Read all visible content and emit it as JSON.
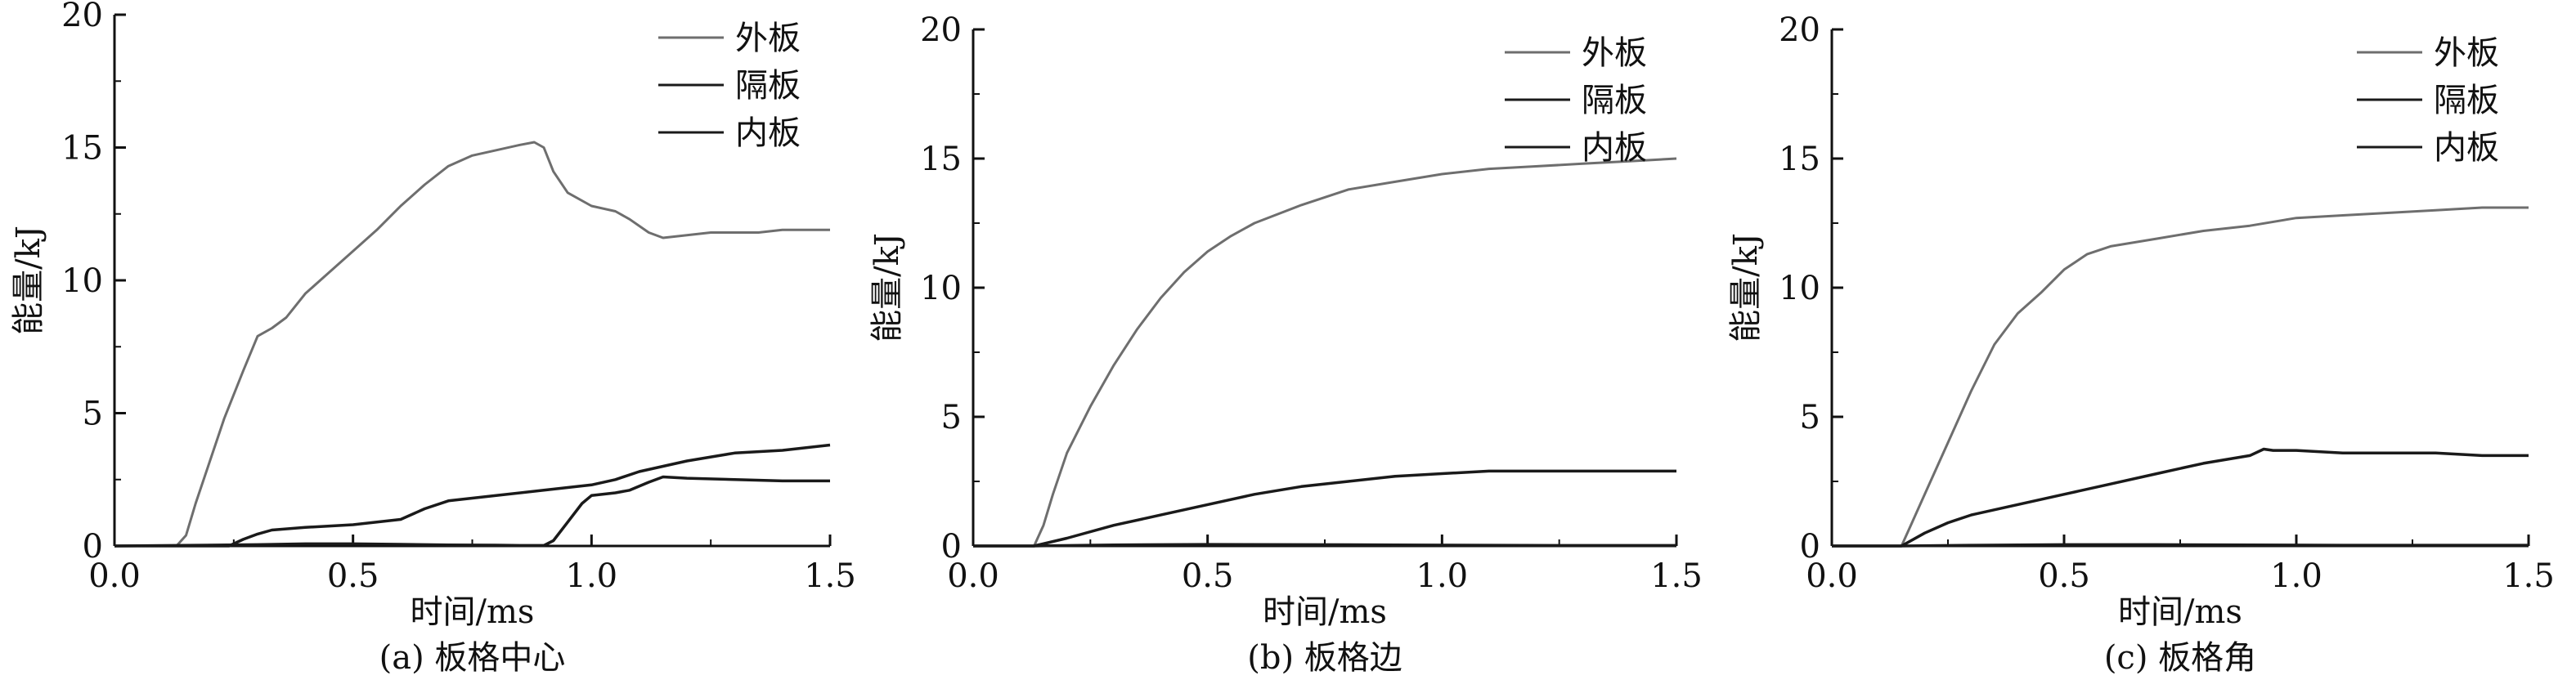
{
  "figure": {
    "legend_labels": [
      "外板",
      "隔板",
      "内板"
    ]
  },
  "chart_data": [
    {
      "type": "line",
      "caption": "(a) 板格中心",
      "xlabel": "时间/ms",
      "ylabel": "能量/kJ",
      "xlim": [
        0.0,
        1.5
      ],
      "ylim": [
        0,
        20
      ],
      "xticks": [
        "0.0",
        "0.5",
        "1.0",
        "1.5"
      ],
      "yticks": [
        "0",
        "5",
        "10",
        "15",
        "20"
      ],
      "legend_position": "top-right",
      "grid": false,
      "series": [
        {
          "name": "外板",
          "color": "#6e6e6e",
          "x": [
            0,
            0.13,
            0.15,
            0.17,
            0.2,
            0.23,
            0.27,
            0.3,
            0.33,
            0.36,
            0.4,
            0.45,
            0.5,
            0.55,
            0.6,
            0.65,
            0.7,
            0.75,
            0.8,
            0.85,
            0.88,
            0.9,
            0.92,
            0.95,
            1.0,
            1.05,
            1.08,
            1.12,
            1.15,
            1.2,
            1.25,
            1.3,
            1.35,
            1.4,
            1.45,
            1.5
          ],
          "y": [
            0,
            0,
            0.4,
            1.6,
            3.2,
            4.8,
            6.6,
            7.9,
            8.2,
            8.6,
            9.5,
            10.3,
            11.1,
            11.9,
            12.8,
            13.6,
            14.3,
            14.7,
            14.9,
            15.1,
            15.2,
            15.0,
            14.1,
            13.3,
            12.8,
            12.6,
            12.3,
            11.8,
            11.6,
            11.7,
            11.8,
            11.8,
            11.8,
            11.9,
            11.9,
            11.9
          ]
        },
        {
          "name": "隔板",
          "color": "#1a1a1a",
          "x": [
            0,
            0.24,
            0.27,
            0.3,
            0.33,
            0.4,
            0.5,
            0.6,
            0.65,
            0.7,
            0.8,
            0.9,
            1.0,
            1.05,
            1.1,
            1.15,
            1.2,
            1.25,
            1.3,
            1.35,
            1.4,
            1.45,
            1.5
          ],
          "y": [
            0,
            0,
            0.25,
            0.45,
            0.6,
            0.7,
            0.8,
            1.0,
            1.4,
            1.7,
            1.9,
            2.1,
            2.3,
            2.5,
            2.8,
            3.0,
            3.2,
            3.35,
            3.5,
            3.55,
            3.6,
            3.7,
            3.8
          ]
        },
        {
          "name": "内板",
          "color": "#1a1a1a",
          "x": [
            0,
            0.3,
            0.4,
            0.5,
            0.6,
            0.7,
            0.8,
            0.85,
            0.9,
            0.92,
            0.95,
            0.98,
            1.0,
            1.05,
            1.08,
            1.12,
            1.15,
            1.2,
            1.3,
            1.4,
            1.5
          ],
          "y": [
            0,
            0.05,
            0.08,
            0.08,
            0.06,
            0.04,
            0.03,
            0.02,
            0.02,
            0.2,
            0.9,
            1.6,
            1.9,
            2.0,
            2.1,
            2.4,
            2.6,
            2.55,
            2.5,
            2.45,
            2.45
          ]
        }
      ]
    },
    {
      "type": "line",
      "caption": "(b) 板格边",
      "xlabel": "时间/ms",
      "ylabel": "能量/kJ",
      "xlim": [
        0.0,
        1.5
      ],
      "ylim": [
        0,
        20
      ],
      "xticks": [
        "0.0",
        "0.5",
        "1.0",
        "1.5"
      ],
      "yticks": [
        "0",
        "5",
        "10",
        "15",
        "20"
      ],
      "legend_position": "top-right",
      "grid": false,
      "series": [
        {
          "name": "外板",
          "color": "#6e6e6e",
          "x": [
            0,
            0.13,
            0.15,
            0.17,
            0.2,
            0.25,
            0.3,
            0.35,
            0.4,
            0.45,
            0.5,
            0.55,
            0.6,
            0.7,
            0.8,
            0.9,
            1.0,
            1.1,
            1.2,
            1.3,
            1.4,
            1.5
          ],
          "y": [
            0,
            0,
            0.8,
            2.0,
            3.6,
            5.4,
            7.0,
            8.4,
            9.6,
            10.6,
            11.4,
            12.0,
            12.5,
            13.2,
            13.8,
            14.1,
            14.4,
            14.6,
            14.7,
            14.8,
            14.9,
            15.0
          ]
        },
        {
          "name": "隔板",
          "color": "#1a1a1a",
          "x": [
            0,
            0.13,
            0.2,
            0.3,
            0.4,
            0.5,
            0.6,
            0.7,
            0.8,
            0.9,
            1.0,
            1.1,
            1.2,
            1.3,
            1.4,
            1.5
          ],
          "y": [
            0,
            0,
            0.3,
            0.8,
            1.2,
            1.6,
            2.0,
            2.3,
            2.5,
            2.7,
            2.8,
            2.9,
            2.9,
            2.9,
            2.9,
            2.9
          ]
        },
        {
          "name": "内板",
          "color": "#1a1a1a",
          "x": [
            0,
            0.13,
            0.3,
            0.5,
            0.7,
            0.9,
            1.1,
            1.3,
            1.5
          ],
          "y": [
            0,
            0,
            0.04,
            0.06,
            0.05,
            0.04,
            0.03,
            0.02,
            0.02
          ]
        }
      ]
    },
    {
      "type": "line",
      "caption": "(c) 板格角",
      "xlabel": "时间/ms",
      "ylabel": "能量/kJ",
      "xlim": [
        0.0,
        1.5
      ],
      "ylim": [
        0,
        20
      ],
      "xticks": [
        "0.0",
        "0.5",
        "1.0",
        "1.5"
      ],
      "yticks": [
        "0",
        "5",
        "10",
        "15",
        "20"
      ],
      "legend_position": "top-right",
      "grid": false,
      "series": [
        {
          "name": "外板",
          "color": "#6e6e6e",
          "x": [
            0,
            0.15,
            0.17,
            0.2,
            0.25,
            0.3,
            0.35,
            0.4,
            0.45,
            0.5,
            0.55,
            0.6,
            0.7,
            0.8,
            0.9,
            1.0,
            1.1,
            1.2,
            1.3,
            1.4,
            1.5
          ],
          "y": [
            0,
            0,
            0.8,
            2.0,
            4.0,
            6.0,
            7.8,
            9.0,
            9.8,
            10.7,
            11.3,
            11.6,
            11.9,
            12.2,
            12.4,
            12.7,
            12.8,
            12.9,
            13.0,
            13.1,
            13.1
          ]
        },
        {
          "name": "隔板",
          "color": "#1a1a1a",
          "x": [
            0,
            0.15,
            0.2,
            0.25,
            0.3,
            0.4,
            0.5,
            0.6,
            0.7,
            0.8,
            0.9,
            0.93,
            0.95,
            1.0,
            1.1,
            1.2,
            1.3,
            1.4,
            1.5
          ],
          "y": [
            0,
            0,
            0.5,
            0.9,
            1.2,
            1.6,
            2.0,
            2.4,
            2.8,
            3.2,
            3.5,
            3.75,
            3.7,
            3.7,
            3.6,
            3.6,
            3.6,
            3.5,
            3.5
          ]
        },
        {
          "name": "内板",
          "color": "#1a1a1a",
          "x": [
            0,
            0.15,
            0.3,
            0.5,
            0.7,
            0.9,
            1.1,
            1.3,
            1.5
          ],
          "y": [
            0,
            0,
            0.03,
            0.05,
            0.05,
            0.04,
            0.03,
            0.03,
            0.03
          ]
        }
      ]
    }
  ]
}
